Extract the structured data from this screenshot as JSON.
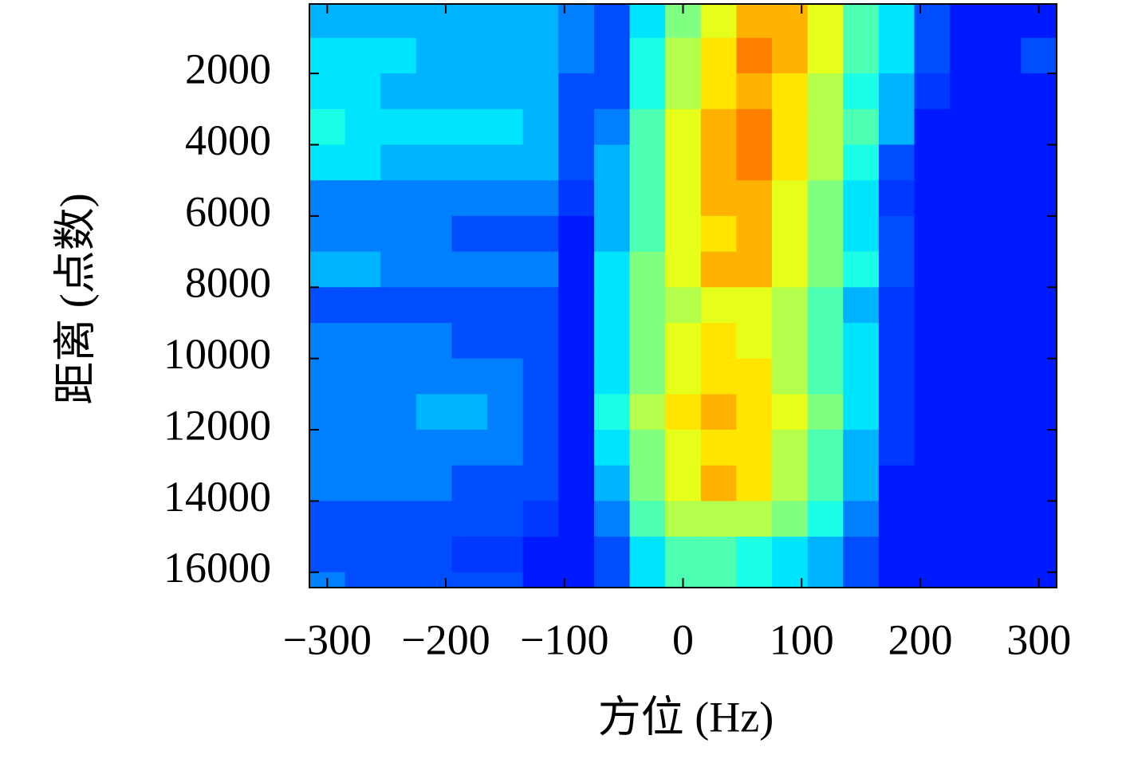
{
  "chart_data": {
    "type": "heatmap",
    "xlabel": "方位 (Hz)",
    "ylabel": "距离 (点数)",
    "colormap": "jet",
    "zlim": [
      0,
      1
    ],
    "cell_width": 30,
    "cell_height": 1000,
    "x": [
      -300,
      -270,
      -240,
      -210,
      -180,
      -150,
      -120,
      -90,
      -60,
      -30,
      0,
      30,
      60,
      90,
      120,
      150,
      180,
      210,
      240,
      270,
      300
    ],
    "y": [
      500,
      1500,
      2500,
      3500,
      4500,
      5500,
      6500,
      7500,
      8500,
      9500,
      10500,
      11500,
      12500,
      13500,
      14500,
      15500,
      16500
    ],
    "z": [
      [
        0.3,
        0.3,
        0.3,
        0.3,
        0.3,
        0.3,
        0.3,
        0.25,
        0.2,
        0.35,
        0.5,
        0.6,
        0.7,
        0.7,
        0.6,
        0.45,
        0.35,
        0.2,
        0.15,
        0.15,
        0.15
      ],
      [
        0.35,
        0.35,
        0.35,
        0.3,
        0.3,
        0.3,
        0.3,
        0.25,
        0.2,
        0.4,
        0.55,
        0.65,
        0.75,
        0.7,
        0.6,
        0.45,
        0.35,
        0.2,
        0.15,
        0.15,
        0.2
      ],
      [
        0.35,
        0.35,
        0.3,
        0.3,
        0.3,
        0.3,
        0.3,
        0.2,
        0.2,
        0.4,
        0.55,
        0.65,
        0.7,
        0.65,
        0.55,
        0.4,
        0.3,
        0.18,
        0.15,
        0.15,
        0.15
      ],
      [
        0.4,
        0.35,
        0.35,
        0.35,
        0.35,
        0.35,
        0.3,
        0.2,
        0.25,
        0.45,
        0.6,
        0.7,
        0.75,
        0.65,
        0.55,
        0.45,
        0.3,
        0.15,
        0.15,
        0.15,
        0.15
      ],
      [
        0.35,
        0.35,
        0.3,
        0.3,
        0.3,
        0.3,
        0.3,
        0.2,
        0.3,
        0.45,
        0.6,
        0.7,
        0.75,
        0.65,
        0.55,
        0.4,
        0.2,
        0.15,
        0.15,
        0.15,
        0.15
      ],
      [
        0.25,
        0.25,
        0.25,
        0.25,
        0.25,
        0.25,
        0.25,
        0.18,
        0.3,
        0.45,
        0.6,
        0.7,
        0.7,
        0.6,
        0.5,
        0.35,
        0.18,
        0.15,
        0.15,
        0.15,
        0.15
      ],
      [
        0.25,
        0.25,
        0.25,
        0.25,
        0.2,
        0.2,
        0.2,
        0.15,
        0.3,
        0.45,
        0.6,
        0.65,
        0.7,
        0.6,
        0.5,
        0.35,
        0.2,
        0.15,
        0.15,
        0.15,
        0.15
      ],
      [
        0.3,
        0.3,
        0.25,
        0.25,
        0.25,
        0.25,
        0.25,
        0.15,
        0.35,
        0.5,
        0.6,
        0.7,
        0.7,
        0.6,
        0.5,
        0.4,
        0.2,
        0.15,
        0.15,
        0.15,
        0.15
      ],
      [
        0.2,
        0.2,
        0.2,
        0.2,
        0.2,
        0.2,
        0.2,
        0.15,
        0.35,
        0.5,
        0.55,
        0.6,
        0.6,
        0.55,
        0.45,
        0.3,
        0.18,
        0.15,
        0.15,
        0.15,
        0.15
      ],
      [
        0.25,
        0.25,
        0.25,
        0.25,
        0.2,
        0.2,
        0.2,
        0.15,
        0.35,
        0.5,
        0.6,
        0.65,
        0.6,
        0.55,
        0.45,
        0.35,
        0.18,
        0.15,
        0.15,
        0.15,
        0.15
      ],
      [
        0.25,
        0.25,
        0.25,
        0.25,
        0.25,
        0.25,
        0.2,
        0.15,
        0.35,
        0.5,
        0.6,
        0.65,
        0.65,
        0.55,
        0.45,
        0.35,
        0.18,
        0.15,
        0.15,
        0.15,
        0.15
      ],
      [
        0.25,
        0.25,
        0.25,
        0.3,
        0.3,
        0.25,
        0.2,
        0.15,
        0.4,
        0.55,
        0.65,
        0.7,
        0.65,
        0.6,
        0.5,
        0.35,
        0.18,
        0.15,
        0.15,
        0.15,
        0.15
      ],
      [
        0.25,
        0.25,
        0.25,
        0.25,
        0.25,
        0.25,
        0.2,
        0.15,
        0.35,
        0.5,
        0.6,
        0.65,
        0.65,
        0.55,
        0.45,
        0.3,
        0.18,
        0.15,
        0.15,
        0.15,
        0.15
      ],
      [
        0.25,
        0.25,
        0.25,
        0.25,
        0.2,
        0.2,
        0.2,
        0.15,
        0.3,
        0.5,
        0.6,
        0.7,
        0.65,
        0.55,
        0.45,
        0.3,
        0.15,
        0.15,
        0.15,
        0.15,
        0.15
      ],
      [
        0.2,
        0.2,
        0.2,
        0.2,
        0.2,
        0.2,
        0.18,
        0.15,
        0.25,
        0.45,
        0.55,
        0.55,
        0.55,
        0.5,
        0.4,
        0.25,
        0.15,
        0.15,
        0.15,
        0.15,
        0.15
      ],
      [
        0.2,
        0.2,
        0.2,
        0.2,
        0.18,
        0.18,
        0.15,
        0.15,
        0.2,
        0.35,
        0.45,
        0.45,
        0.4,
        0.35,
        0.3,
        0.2,
        0.15,
        0.15,
        0.15,
        0.15,
        0.15
      ],
      [
        0.25,
        0.2,
        0.2,
        0.2,
        0.2,
        0.2,
        0.15,
        0.15,
        0.2,
        0.35,
        0.45,
        0.45,
        0.4,
        0.35,
        0.3,
        0.2,
        0.15,
        0.15,
        0.15,
        0.15,
        0.15
      ]
    ],
    "xlim": [
      -315,
      315
    ],
    "ylim": [
      50,
      16430
    ],
    "y_inverted": true,
    "xticks": [
      {
        "value": -300,
        "label": "−300"
      },
      {
        "value": -200,
        "label": "−200"
      },
      {
        "value": -100,
        "label": "−100"
      },
      0,
      100,
      200,
      300
    ],
    "yticks": [
      2000,
      4000,
      6000,
      8000,
      10000,
      12000,
      14000,
      16000
    ]
  }
}
